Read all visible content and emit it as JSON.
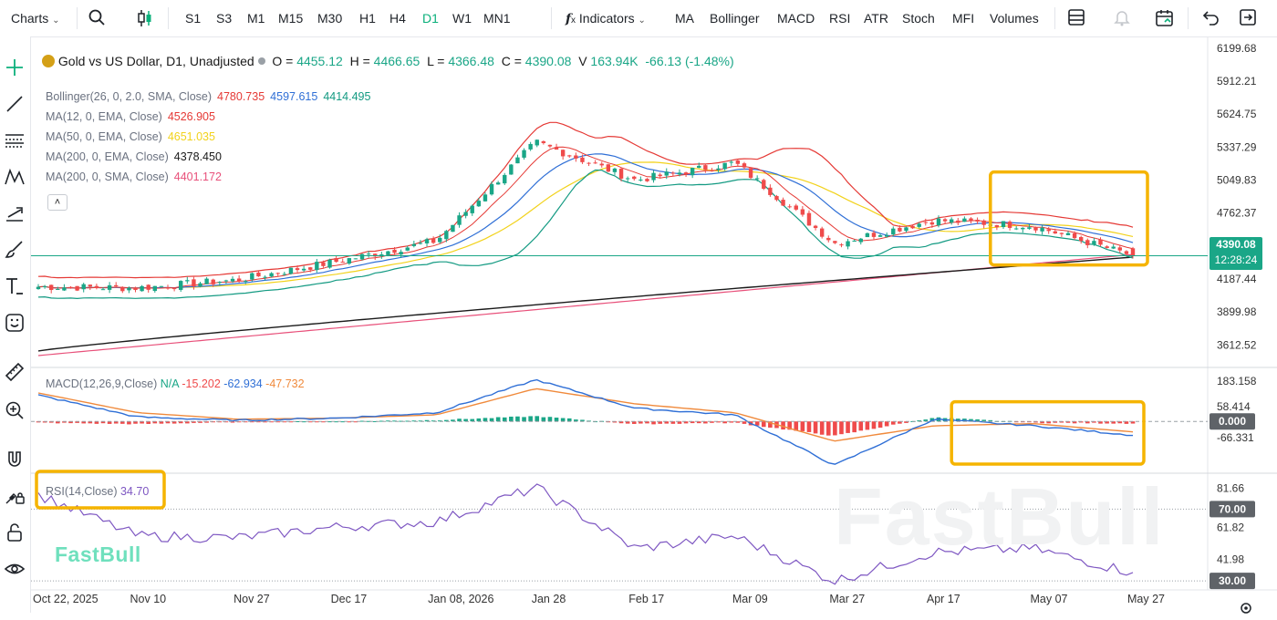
{
  "toolbar": {
    "charts_label": "Charts",
    "timeframes": [
      "S1",
      "S3",
      "M1",
      "M15",
      "M30",
      "H1",
      "H4",
      "D1",
      "W1",
      "MN1"
    ],
    "active_timeframe": "D1",
    "indicators_label": "Indicators",
    "indicator_shortcuts": [
      "MA",
      "Bollinger",
      "MACD",
      "RSI",
      "ATR",
      "Stoch",
      "MFI",
      "Volumes"
    ]
  },
  "left_tools": [
    "crosshair-icon",
    "trend-line-icon",
    "fib-icon",
    "pattern-icon",
    "projection-icon",
    "brush-icon",
    "text-icon",
    "emoji-icon",
    "ruler-icon",
    "zoom-in-icon",
    "magnet-icon",
    "lock-drawing-icon",
    "lock-icon",
    "eye-icon"
  ],
  "header": {
    "symbol": "Gold vs US Dollar, D1, Unadjusted",
    "o_label": "O",
    "o_value": "4455.12",
    "h_label": "H",
    "h_value": "4466.65",
    "l_label": "L",
    "l_value": "4366.48",
    "c_label": "C",
    "c_value": "4390.08",
    "v_label": "V",
    "v_value": "163.94K",
    "change": "-66.13 (-1.48%)"
  },
  "overlays": [
    {
      "label": "Bollinger(26, 0, 2.0, SMA, Close)",
      "values": [
        "4780.735",
        "4597.615",
        "4414.495"
      ],
      "colors": [
        "#e53935",
        "#2f6fd6",
        "#139a82"
      ]
    },
    {
      "label": "MA(12, 0, EMA, Close)",
      "values": [
        "4526.905"
      ],
      "colors": [
        "#e53935"
      ]
    },
    {
      "label": "MA(50, 0, EMA, Close)",
      "values": [
        "4651.035"
      ],
      "colors": [
        "#f2d21b"
      ]
    },
    {
      "label": "MA(200, 0, EMA, Close)",
      "values": [
        "4378.450"
      ],
      "colors": [
        "#1a1a1a"
      ]
    },
    {
      "label": "MA(200, 0, SMA, Close)",
      "values": [
        "4401.172"
      ],
      "colors": [
        "#e8507a"
      ]
    }
  ],
  "macd_legend": {
    "label": "MACD(12,26,9,Close)",
    "na": "N/A",
    "v1": "-15.202",
    "v2": "-62.934",
    "v3": "-47.732"
  },
  "rsi_legend": {
    "label": "RSI(14,Close)",
    "value": "34.70"
  },
  "watermark": "FastBull",
  "price_badge": {
    "price": "4390.08",
    "countdown": "12:28:24"
  },
  "price_ticks": [
    "6199.68",
    "5912.21",
    "5624.75",
    "5337.29",
    "5049.83",
    "4762.37",
    "4474.90",
    "4187.44",
    "3899.98",
    "3612.52"
  ],
  "macd_ticks": [
    "183.158",
    "58.414",
    "0.000",
    "-66.331"
  ],
  "rsi_ticks": [
    "81.66",
    "70.00",
    "61.82",
    "41.98",
    "30.00"
  ],
  "x_ticks": [
    "Oct 22, 2025",
    "Nov 10",
    "Nov 27",
    "Dec 17",
    "Jan 08, 2026",
    "Jan 28",
    "Feb 17",
    "Mar 09",
    "Mar 27",
    "Apr 17",
    "May 07",
    "May 27"
  ],
  "colors": {
    "up": "#1aa687",
    "down": "#ef4b4b",
    "accent": "#0bb07b",
    "highlight": "#f5b400"
  },
  "chart_data": [
    {
      "type": "candlestick",
      "title": "Gold vs US Dollar, D1, Unadjusted",
      "x": [
        "Oct 22, 2025",
        "Nov 10",
        "Nov 27",
        "Dec 17",
        "Jan 08, 2026",
        "Jan 28",
        "Feb 17",
        "Mar 09",
        "Mar 27",
        "Apr 17",
        "May 07",
        "May 27"
      ],
      "close": [
        4120,
        4110,
        4180,
        4340,
        4520,
        5380,
        5050,
        5200,
        4500,
        4700,
        4650,
        4390
      ],
      "last": {
        "open": 4455.12,
        "high": 4466.65,
        "low": 4366.48,
        "close": 4390.08
      },
      "ylim": [
        3480,
        6230
      ]
    },
    {
      "type": "line",
      "title": "MACD(12,26,9,Close)",
      "x": [
        "Oct 22, 2025",
        "Nov 10",
        "Nov 27",
        "Dec 17",
        "Jan 08, 2026",
        "Jan 28",
        "Feb 17",
        "Mar 09",
        "Mar 27",
        "Apr 17",
        "May 07",
        "May 27"
      ],
      "series": [
        {
          "name": "MACD",
          "values": [
            120,
            20,
            5,
            15,
            40,
            190,
            60,
            30,
            -200,
            10,
            -20,
            -63
          ]
        },
        {
          "name": "Signal",
          "values": [
            130,
            40,
            10,
            15,
            30,
            150,
            80,
            40,
            -90,
            -20,
            -10,
            -48
          ]
        }
      ],
      "ylim": [
        -220,
        230
      ]
    },
    {
      "type": "line",
      "title": "RSI(14,Close)",
      "x": [
        "Oct 22, 2025",
        "Nov 10",
        "Nov 27",
        "Dec 17",
        "Jan 08, 2026",
        "Jan 28",
        "Feb 17",
        "Mar 09",
        "Mar 27",
        "Apr 17",
        "May 07",
        "May 27"
      ],
      "series": [
        {
          "name": "RSI",
          "values": [
            78,
            55,
            54,
            60,
            63,
            82,
            48,
            55,
            30,
            46,
            48,
            34.7
          ]
        }
      ],
      "ylim": [
        27,
        88
      ]
    }
  ]
}
